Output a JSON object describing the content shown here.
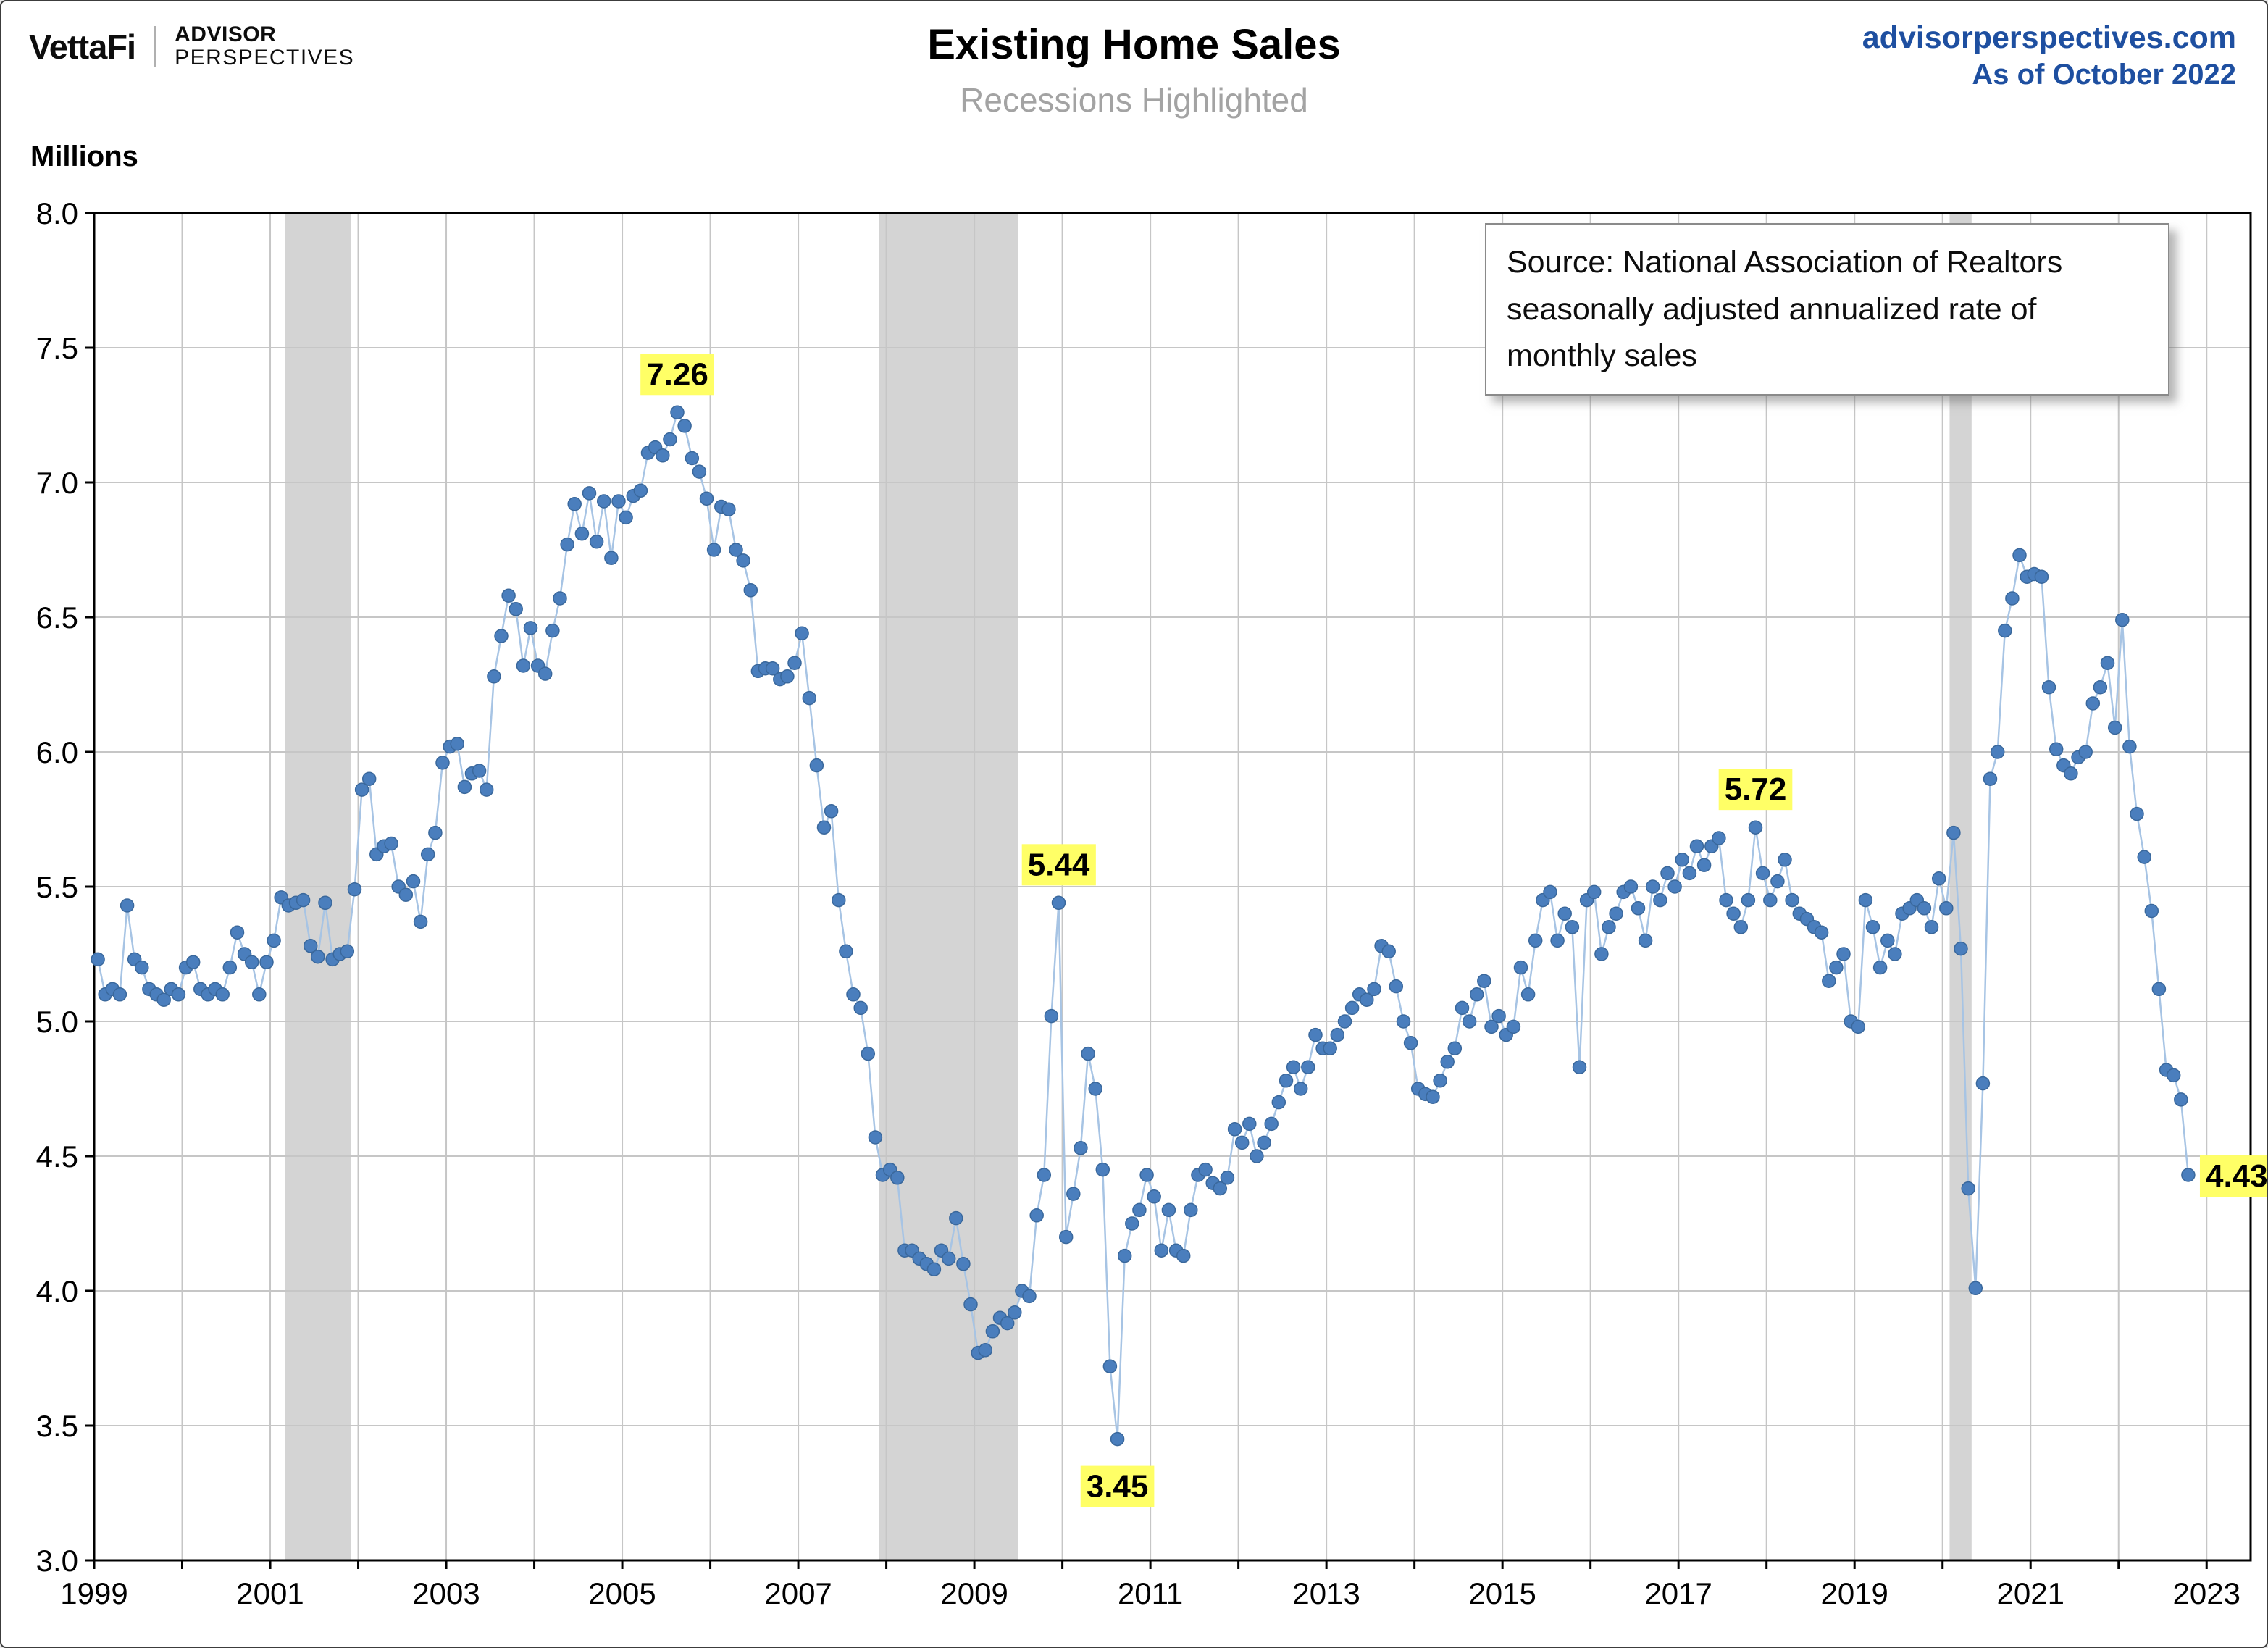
{
  "header": {
    "brand": "VettaFi",
    "brand_line1": "ADVISOR",
    "brand_line2": "PERSPECTIVES",
    "website": "advisorperspectives.com",
    "as_of": "As of October 2022"
  },
  "title": "Existing Home Sales",
  "subtitle": "Recessions Highlighted",
  "y_axis_unit": "Millions",
  "source_box": {
    "lines": [
      "Source: National Association of Realtors",
      "seasonally adjusted annualized rate of",
      "monthly sales"
    ]
  },
  "chart_data": {
    "type": "scatter",
    "title": "Existing Home Sales",
    "subtitle": "Recessions Highlighted",
    "ylabel": "Millions",
    "ylim": [
      3.0,
      8.0
    ],
    "ytick_step": 0.5,
    "xlim": [
      1999,
      2023.5
    ],
    "xticks": [
      1999,
      2001,
      2003,
      2005,
      2007,
      2009,
      2011,
      2013,
      2015,
      2017,
      2019,
      2021,
      2023
    ],
    "grid": true,
    "frequency": "monthly",
    "start_year": 1999,
    "start_month": 1,
    "end_label": "October 2022",
    "monthly_values": [
      5.23,
      5.1,
      5.12,
      5.1,
      5.43,
      5.23,
      5.2,
      5.12,
      5.1,
      5.08,
      5.12,
      5.1,
      5.2,
      5.22,
      5.12,
      5.1,
      5.12,
      5.1,
      5.2,
      5.33,
      5.25,
      5.22,
      5.1,
      5.22,
      5.3,
      5.46,
      5.43,
      5.44,
      5.45,
      5.28,
      5.24,
      5.44,
      5.23,
      5.25,
      5.26,
      5.49,
      5.86,
      5.9,
      5.62,
      5.65,
      5.66,
      5.5,
      5.47,
      5.52,
      5.37,
      5.62,
      5.7,
      5.96,
      6.02,
      6.03,
      5.87,
      5.92,
      5.93,
      5.86,
      6.28,
      6.43,
      6.58,
      6.53,
      6.32,
      6.46,
      6.32,
      6.29,
      6.45,
      6.57,
      6.77,
      6.92,
      6.81,
      6.96,
      6.78,
      6.93,
      6.72,
      6.93,
      6.87,
      6.95,
      6.97,
      7.11,
      7.13,
      7.1,
      7.16,
      7.26,
      7.21,
      7.09,
      7.04,
      6.94,
      6.75,
      6.91,
      6.9,
      6.75,
      6.71,
      6.6,
      6.3,
      6.31,
      6.31,
      6.27,
      6.28,
      6.33,
      6.44,
      6.2,
      5.95,
      5.72,
      5.78,
      5.45,
      5.26,
      5.1,
      5.05,
      4.88,
      4.57,
      4.43,
      4.45,
      4.42,
      4.15,
      4.15,
      4.12,
      4.1,
      4.08,
      4.15,
      4.12,
      4.27,
      4.1,
      3.95,
      3.77,
      3.78,
      3.85,
      3.9,
      3.88,
      3.92,
      4.0,
      3.98,
      4.28,
      4.43,
      5.02,
      5.44,
      4.2,
      4.36,
      4.53,
      4.88,
      4.75,
      4.45,
      3.72,
      3.45,
      4.13,
      4.25,
      4.3,
      4.43,
      4.35,
      4.15,
      4.3,
      4.15,
      4.13,
      4.3,
      4.43,
      4.45,
      4.4,
      4.38,
      4.42,
      4.6,
      4.55,
      4.62,
      4.5,
      4.55,
      4.62,
      4.7,
      4.78,
      4.83,
      4.75,
      4.83,
      4.95,
      4.9,
      4.9,
      4.95,
      5.0,
      5.05,
      5.1,
      5.08,
      5.12,
      5.28,
      5.26,
      5.13,
      5.0,
      4.92,
      4.75,
      4.73,
      4.72,
      4.78,
      4.85,
      4.9,
      5.05,
      5.0,
      5.1,
      5.15,
      4.98,
      5.02,
      4.95,
      4.98,
      5.2,
      5.1,
      5.3,
      5.45,
      5.48,
      5.3,
      5.4,
      5.35,
      4.83,
      5.45,
      5.48,
      5.25,
      5.35,
      5.4,
      5.48,
      5.5,
      5.42,
      5.3,
      5.5,
      5.45,
      5.55,
      5.5,
      5.6,
      5.55,
      5.65,
      5.58,
      5.65,
      5.68,
      5.45,
      5.4,
      5.35,
      5.45,
      5.72,
      5.55,
      5.45,
      5.52,
      5.6,
      5.45,
      5.4,
      5.38,
      5.35,
      5.33,
      5.15,
      5.2,
      5.25,
      5.0,
      4.98,
      5.45,
      5.35,
      5.2,
      5.3,
      5.25,
      5.4,
      5.42,
      5.45,
      5.42,
      5.35,
      5.53,
      5.42,
      5.7,
      5.27,
      4.38,
      4.01,
      4.77,
      5.9,
      6.0,
      6.45,
      6.57,
      6.73,
      6.65,
      6.66,
      6.65,
      6.24,
      6.01,
      5.95,
      5.92,
      5.98,
      6.0,
      6.18,
      6.24,
      6.33,
      6.09,
      6.49,
      6.02,
      5.77,
      5.61,
      5.41,
      5.12,
      4.82,
      4.8,
      4.71,
      4.43
    ],
    "recessions": [
      [
        2001.17,
        2001.92
      ],
      [
        2007.92,
        2009.5
      ],
      [
        2020.08,
        2020.33
      ]
    ],
    "annotations": [
      {
        "label": "7.26",
        "x": 2005.625,
        "y": 7.26,
        "anchor": "above"
      },
      {
        "label": "5.44",
        "x": 2009.958,
        "y": 5.44,
        "anchor": "above"
      },
      {
        "label": "3.45",
        "x": 2010.625,
        "y": 3.45,
        "anchor": "below"
      },
      {
        "label": "5.72",
        "x": 2017.875,
        "y": 5.72,
        "anchor": "above"
      },
      {
        "label": "4.43",
        "x": 2022.792,
        "y": 4.43,
        "anchor": "right"
      }
    ],
    "colors": {
      "point": "#4a7ebd",
      "point_stroke": "#3a689c",
      "connector": "#a7c4e4",
      "recession_band": "#d4d4d4",
      "grid": "#c6c6c6",
      "frame": "#000000",
      "annotation_bg": "#ffff66",
      "header_blue": "#1e4fa0"
    }
  }
}
